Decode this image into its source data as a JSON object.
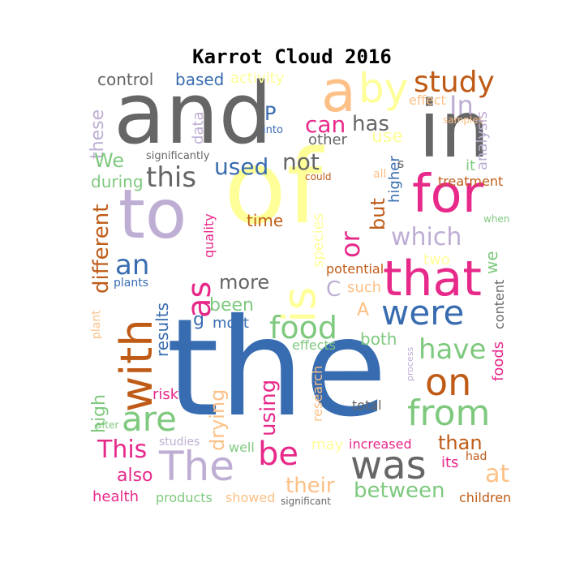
{
  "title": "Karrot Cloud 2016",
  "palette": {
    "gray": "#666666",
    "pink": "#e7298a",
    "blue": "#386cb0",
    "purple": "#beaed4",
    "green": "#7fc97f",
    "orange": "#fdc086",
    "yellow": "#ffff99",
    "brown": "#bf5b17"
  },
  "words": [
    {
      "text": "the",
      "color": "#386cb0"
    },
    {
      "text": "of",
      "color": "#ffff99"
    },
    {
      "text": "and",
      "color": "#666666"
    },
    {
      "text": "in",
      "color": "#666666"
    },
    {
      "text": "to",
      "color": "#beaed4"
    },
    {
      "text": "a",
      "color": "#fdc086"
    },
    {
      "text": "for",
      "color": "#e7298a"
    },
    {
      "text": "that",
      "color": "#e7298a"
    },
    {
      "text": "with",
      "color": "#bf5b17"
    },
    {
      "text": "is",
      "color": "#ffff99"
    },
    {
      "text": "were",
      "color": "#386cb0"
    },
    {
      "text": "was",
      "color": "#666666"
    },
    {
      "text": "by",
      "color": "#ffff99"
    },
    {
      "text": "The",
      "color": "#beaed4"
    },
    {
      "text": "are",
      "color": "#7fc97f"
    },
    {
      "text": "from",
      "color": "#7fc97f"
    },
    {
      "text": "on",
      "color": "#bf5b17"
    },
    {
      "text": "as",
      "color": "#e7298a"
    },
    {
      "text": "food",
      "color": "#7fc97f"
    },
    {
      "text": "be",
      "color": "#e7298a"
    },
    {
      "text": "this",
      "color": "#666666"
    },
    {
      "text": "study",
      "color": "#bf5b17"
    },
    {
      "text": "have",
      "color": "#7fc97f"
    },
    {
      "text": "an",
      "color": "#386cb0"
    },
    {
      "text": "or",
      "color": "#e7298a"
    },
    {
      "text": "which",
      "color": "#beaed4"
    },
    {
      "text": "used",
      "color": "#386cb0"
    },
    {
      "text": "has",
      "color": "#666666"
    },
    {
      "text": "can",
      "color": "#e7298a"
    },
    {
      "text": "not",
      "color": "#666666"
    },
    {
      "text": "more",
      "color": "#666666"
    },
    {
      "text": "using",
      "color": "#e7298a"
    },
    {
      "text": "between",
      "color": "#7fc97f"
    },
    {
      "text": "their",
      "color": "#fdc086"
    },
    {
      "text": "This",
      "color": "#e7298a"
    },
    {
      "text": "at",
      "color": "#fdc086"
    },
    {
      "text": "In",
      "color": "#beaed4"
    },
    {
      "text": "different",
      "color": "#bf5b17"
    },
    {
      "text": "results",
      "color": "#386cb0"
    },
    {
      "text": "drying",
      "color": "#fdc086"
    },
    {
      "text": "high",
      "color": "#7fc97f"
    },
    {
      "text": "than",
      "color": "#bf5b17"
    },
    {
      "text": "been",
      "color": "#7fc97f"
    },
    {
      "text": "but",
      "color": "#bf5b17"
    },
    {
      "text": "also",
      "color": "#e7298a"
    },
    {
      "text": "both",
      "color": "#7fc97f"
    },
    {
      "text": "time",
      "color": "#bf5b17"
    },
    {
      "text": "these",
      "color": "#beaed4"
    },
    {
      "text": "control",
      "color": "#666666"
    },
    {
      "text": "based",
      "color": "#386cb0"
    },
    {
      "text": "activity",
      "color": "#ffff99"
    },
    {
      "text": "data",
      "color": "#beaed4"
    },
    {
      "text": "P",
      "color": "#386cb0"
    },
    {
      "text": "into",
      "color": "#386cb0"
    },
    {
      "text": "effect",
      "color": "#fdc086"
    },
    {
      "text": "samples",
      "color": "#fdc086"
    },
    {
      "text": "analysis",
      "color": "#beaed4"
    },
    {
      "text": "other",
      "color": "#666666"
    },
    {
      "text": "use",
      "color": "#ffff99"
    },
    {
      "text": "We",
      "color": "#7fc97f"
    },
    {
      "text": "significantly",
      "color": "#666666"
    },
    {
      "text": "during",
      "color": "#7fc97f"
    },
    {
      "text": "could",
      "color": "#bf5b17"
    },
    {
      "text": "all",
      "color": "#fdc086"
    },
    {
      "text": "higher",
      "color": "#386cb0"
    },
    {
      "text": "s",
      "color": "#666666"
    },
    {
      "text": "it",
      "color": "#7fc97f"
    },
    {
      "text": "treatment",
      "color": "#bf5b17"
    },
    {
      "text": "when",
      "color": "#7fc97f"
    },
    {
      "text": "quality",
      "color": "#e7298a"
    },
    {
      "text": "species",
      "color": "#ffff99"
    },
    {
      "text": "two",
      "color": "#ffff99"
    },
    {
      "text": "potential",
      "color": "#bf5b17"
    },
    {
      "text": "we",
      "color": "#7fc97f"
    },
    {
      "text": "C",
      "color": "#beaed4"
    },
    {
      "text": "such",
      "color": "#fdc086"
    },
    {
      "text": "plants",
      "color": "#386cb0"
    },
    {
      "text": "content",
      "color": "#666666"
    },
    {
      "text": "plant",
      "color": "#fdc086"
    },
    {
      "text": "g",
      "color": "#386cb0"
    },
    {
      "text": "most",
      "color": "#386cb0"
    },
    {
      "text": "A",
      "color": "#fdc086"
    },
    {
      "text": "effects",
      "color": "#7fc97f"
    },
    {
      "text": "process",
      "color": "#beaed4"
    },
    {
      "text": "foods",
      "color": "#e7298a"
    },
    {
      "text": "research",
      "color": "#fdc086"
    },
    {
      "text": "risk",
      "color": "#e7298a"
    },
    {
      "text": "total",
      "color": "#666666"
    },
    {
      "text": "after",
      "color": "#7fc97f"
    },
    {
      "text": "studies",
      "color": "#beaed4"
    },
    {
      "text": "well",
      "color": "#7fc97f"
    },
    {
      "text": "may",
      "color": "#ffff99"
    },
    {
      "text": "increased",
      "color": "#e7298a"
    },
    {
      "text": "had",
      "color": "#bf5b17"
    },
    {
      "text": "its",
      "color": "#e7298a"
    },
    {
      "text": "health",
      "color": "#e7298a"
    },
    {
      "text": "products",
      "color": "#7fc97f"
    },
    {
      "text": "showed",
      "color": "#fdc086"
    },
    {
      "text": "significant",
      "color": "#666666"
    },
    {
      "text": "children",
      "color": "#bf5b17"
    }
  ]
}
